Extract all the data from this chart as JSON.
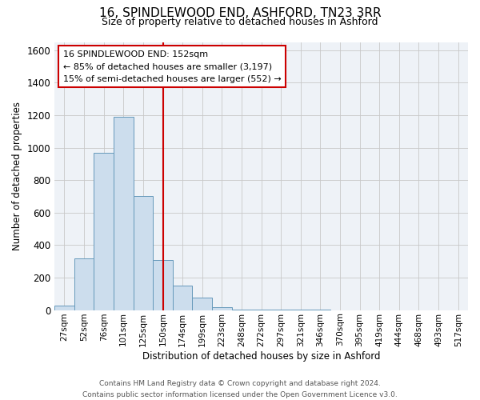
{
  "title": "16, SPINDLEWOOD END, ASHFORD, TN23 3RR",
  "subtitle": "Size of property relative to detached houses in Ashford",
  "xlabel": "Distribution of detached houses by size in Ashford",
  "ylabel": "Number of detached properties",
  "bar_color": "#ccdded",
  "bar_edge_color": "#6699bb",
  "background_color": "#ffffff",
  "plot_bg_color": "#eef2f7",
  "grid_color": "#c8c8c8",
  "bin_labels": [
    "27sqm",
    "52sqm",
    "76sqm",
    "101sqm",
    "125sqm",
    "150sqm",
    "174sqm",
    "199sqm",
    "223sqm",
    "248sqm",
    "272sqm",
    "297sqm",
    "321sqm",
    "346sqm",
    "370sqm",
    "395sqm",
    "419sqm",
    "444sqm",
    "468sqm",
    "493sqm",
    "517sqm"
  ],
  "bin_values": [
    30,
    320,
    970,
    1190,
    700,
    310,
    150,
    75,
    20,
    5,
    3,
    2,
    1,
    1,
    0,
    0,
    0,
    0,
    0,
    0,
    0
  ],
  "ylim": [
    0,
    1650
  ],
  "yticks": [
    0,
    200,
    400,
    600,
    800,
    1000,
    1200,
    1400,
    1600
  ],
  "property_line_x": 5.0,
  "property_line_color": "#cc0000",
  "annotation_line1": "16 SPINDLEWOOD END: 152sqm",
  "annotation_line2": "← 85% of detached houses are smaller (3,197)",
  "annotation_line3": "15% of semi-detached houses are larger (552) →",
  "footer_line1": "Contains HM Land Registry data © Crown copyright and database right 2024.",
  "footer_line2": "Contains public sector information licensed under the Open Government Licence v3.0."
}
